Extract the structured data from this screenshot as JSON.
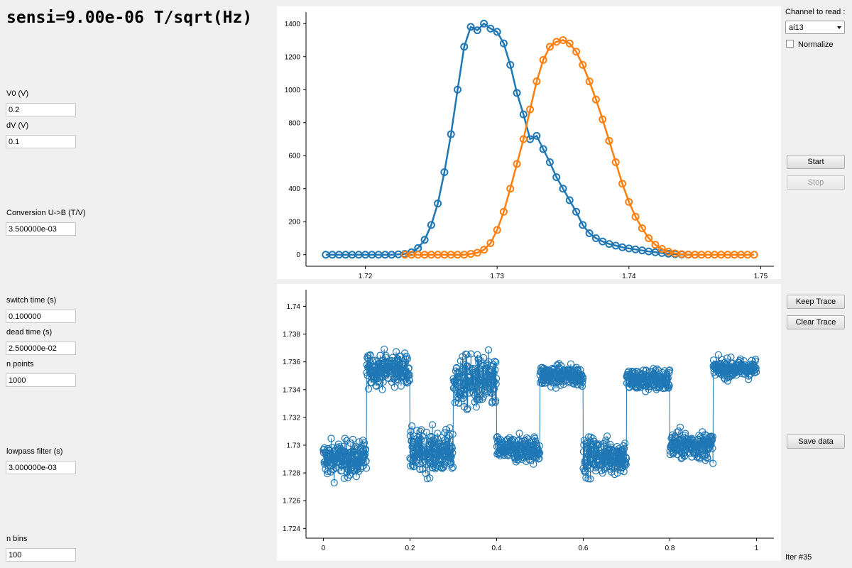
{
  "header": {
    "sensi": "sensi=9.00e-06 T/sqrt(Hz)"
  },
  "params": [
    {
      "label": "V0 (V)",
      "value": "0.2"
    },
    {
      "label": "dV (V)",
      "value": "0.1"
    },
    {
      "label": "Conversion U->B (T/V)",
      "value": "3.500000e-03"
    },
    {
      "label": "switch time (s)",
      "value": "0.100000"
    },
    {
      "label": "dead time (s)",
      "value": "2.500000e-02"
    },
    {
      "label": "n points",
      "value": "1000"
    },
    {
      "label": "lowpass filter (s)",
      "value": "3.000000e-03"
    },
    {
      "label": "n bins",
      "value": "100"
    }
  ],
  "right": {
    "channel_label": "Channel to read :",
    "channel_value": "ai13",
    "normalize_label": "Normalize",
    "normalize_checked": false,
    "start_label": "Start",
    "stop_label": "Stop",
    "keep_label": "Keep Trace",
    "clear_label": "Clear Trace",
    "save_label": "Save data",
    "iter_label": "Iter #35"
  },
  "colors": {
    "blue": "#1f77b4",
    "orange": "#ff7f0e"
  },
  "chart_data": [
    {
      "type": "line",
      "title": "",
      "xlabel": "",
      "ylabel": "",
      "xlim": [
        1.7155,
        1.751
      ],
      "ylim": [
        -70,
        1470
      ],
      "xticks": [
        "1.72",
        "1.73",
        "1.74",
        "1.75"
      ],
      "yticks": [
        "0",
        "200",
        "400",
        "600",
        "800",
        "1000",
        "1200",
        "1400"
      ],
      "series": [
        {
          "color": "#1f77b4",
          "markers": "circle",
          "x": [
            1.717,
            1.7175,
            1.718,
            1.7185,
            1.719,
            1.7195,
            1.72,
            1.7205,
            1.721,
            1.7215,
            1.722,
            1.7225,
            1.723,
            1.7235,
            1.724,
            1.7245,
            1.725,
            1.7255,
            1.726,
            1.7265,
            1.727,
            1.7275,
            1.728,
            1.7285,
            1.729,
            1.7295,
            1.73,
            1.7305,
            1.731,
            1.7315,
            1.732,
            1.7325,
            1.733,
            1.7335,
            1.734,
            1.7345,
            1.735,
            1.7355,
            1.736,
            1.7365,
            1.737,
            1.7375,
            1.738,
            1.7385,
            1.739,
            1.7395,
            1.74,
            1.7405,
            1.741,
            1.7415,
            1.742,
            1.7425,
            1.743,
            1.7435,
            1.744,
            1.7445,
            1.745
          ],
          "y": [
            0,
            0,
            0,
            0,
            0,
            0,
            0,
            0,
            0,
            0,
            0,
            2,
            5,
            15,
            40,
            90,
            180,
            310,
            500,
            730,
            1000,
            1260,
            1380,
            1360,
            1400,
            1370,
            1350,
            1280,
            1150,
            980,
            850,
            700,
            720,
            640,
            560,
            470,
            400,
            330,
            260,
            180,
            130,
            100,
            80,
            65,
            55,
            45,
            38,
            32,
            26,
            20,
            15,
            10,
            6,
            3,
            1,
            0,
            0
          ]
        },
        {
          "color": "#ff7f0e",
          "markers": "circle",
          "x": [
            1.723,
            1.7235,
            1.724,
            1.7245,
            1.725,
            1.7255,
            1.726,
            1.7265,
            1.727,
            1.7275,
            1.728,
            1.7285,
            1.729,
            1.7295,
            1.73,
            1.7305,
            1.731,
            1.7315,
            1.732,
            1.7325,
            1.733,
            1.7335,
            1.734,
            1.7345,
            1.735,
            1.7355,
            1.736,
            1.7365,
            1.737,
            1.7375,
            1.738,
            1.7385,
            1.739,
            1.7395,
            1.74,
            1.7405,
            1.741,
            1.7415,
            1.742,
            1.7425,
            1.743,
            1.7435,
            1.744,
            1.7445,
            1.745,
            1.7455,
            1.746,
            1.7465,
            1.747,
            1.7475,
            1.748,
            1.7485,
            1.749,
            1.7495
          ],
          "y": [
            0,
            0,
            0,
            0,
            0,
            0,
            0,
            0,
            0,
            0,
            5,
            12,
            30,
            70,
            150,
            260,
            400,
            550,
            700,
            880,
            1050,
            1180,
            1260,
            1290,
            1300,
            1280,
            1230,
            1150,
            1050,
            940,
            820,
            690,
            560,
            430,
            320,
            230,
            160,
            100,
            60,
            35,
            18,
            8,
            3,
            1,
            0,
            0,
            0,
            0,
            0,
            0,
            0,
            0,
            0,
            0
          ]
        }
      ]
    },
    {
      "type": "scatter",
      "title": "",
      "xlabel": "",
      "ylabel": "",
      "xlim": [
        -0.04,
        1.04
      ],
      "ylim": [
        1.7233,
        1.7412
      ],
      "xticks": [
        "0",
        "0.2",
        "0.4",
        "0.6",
        "0.8",
        "1"
      ],
      "yticks": [
        "1.724",
        "1.726",
        "1.728",
        "1.73",
        "1.732",
        "1.734",
        "1.736",
        "1.738",
        "1.74"
      ],
      "series": [
        {
          "color": "#1f77b4",
          "markers": "circle",
          "description_levels": "alternating plateaus, 1000 points per sweep",
          "segments": [
            {
              "x0": 0.0,
              "x1": 0.1,
              "center": 1.729,
              "spread": 0.0017
            },
            {
              "x0": 0.1,
              "x1": 0.2,
              "center": 1.7355,
              "spread": 0.0015
            },
            {
              "x0": 0.2,
              "x1": 0.3,
              "center": 1.7295,
              "spread": 0.002
            },
            {
              "x0": 0.3,
              "x1": 0.4,
              "center": 1.7345,
              "spread": 0.0025
            },
            {
              "x0": 0.4,
              "x1": 0.5,
              "center": 1.7297,
              "spread": 0.0012
            },
            {
              "x0": 0.5,
              "x1": 0.6,
              "center": 1.735,
              "spread": 0.001
            },
            {
              "x0": 0.6,
              "x1": 0.7,
              "center": 1.7292,
              "spread": 0.0017
            },
            {
              "x0": 0.7,
              "x1": 0.8,
              "center": 1.7347,
              "spread": 0.0011
            },
            {
              "x0": 0.8,
              "x1": 0.9,
              "center": 1.73,
              "spread": 0.0013
            },
            {
              "x0": 0.9,
              "x1": 1.0,
              "center": 1.7355,
              "spread": 0.0009
            }
          ]
        }
      ]
    }
  ]
}
